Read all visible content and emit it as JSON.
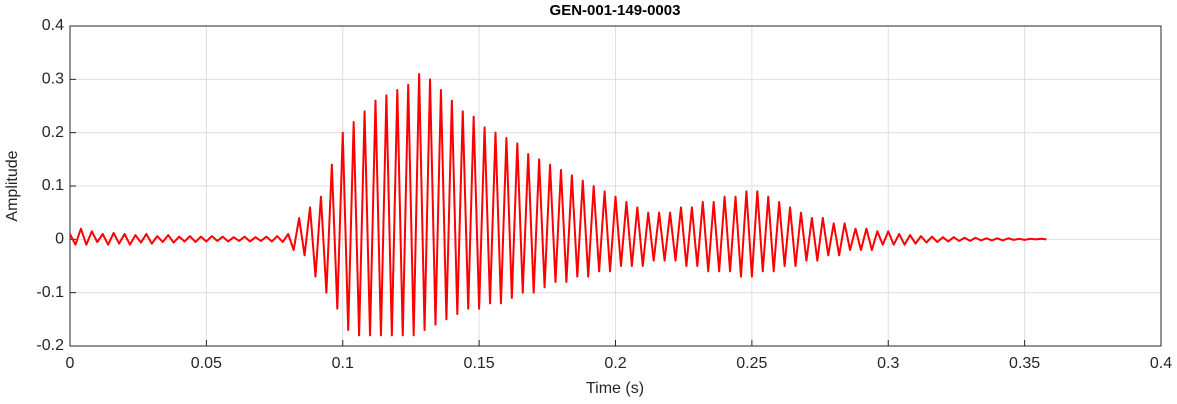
{
  "chart_data": {
    "type": "line",
    "title": "GEN-001-149-0003",
    "x_label": "Time (s)",
    "y_label": "Amplitude",
    "xlim": [
      0,
      0.4
    ],
    "ylim": [
      -0.2,
      0.4
    ],
    "xticks": [
      0,
      0.05,
      0.1,
      0.15,
      0.2,
      0.25,
      0.3,
      0.35,
      0.4
    ],
    "yticks": [
      -0.2,
      -0.1,
      0,
      0.1,
      0.2,
      0.3,
      0.4
    ],
    "grid": true,
    "x": [
      0,
      0.002,
      0.004,
      0.006,
      0.008,
      0.01,
      0.012,
      0.014,
      0.016,
      0.018,
      0.02,
      0.022,
      0.024,
      0.026,
      0.028,
      0.03,
      0.032,
      0.034,
      0.036,
      0.038,
      0.04,
      0.042,
      0.044,
      0.046,
      0.048,
      0.05,
      0.052,
      0.054,
      0.056,
      0.058,
      0.06,
      0.062,
      0.064,
      0.066,
      0.068,
      0.07,
      0.072,
      0.074,
      0.076,
      0.078,
      0.08,
      0.082,
      0.084,
      0.086,
      0.088,
      0.09,
      0.092,
      0.094,
      0.096,
      0.098,
      0.1,
      0.102,
      0.104,
      0.106,
      0.108,
      0.11,
      0.112,
      0.114,
      0.116,
      0.118,
      0.12,
      0.122,
      0.124,
      0.126,
      0.128,
      0.13,
      0.132,
      0.134,
      0.136,
      0.138,
      0.14,
      0.142,
      0.144,
      0.146,
      0.148,
      0.15,
      0.152,
      0.154,
      0.156,
      0.158,
      0.16,
      0.162,
      0.164,
      0.166,
      0.168,
      0.17,
      0.172,
      0.174,
      0.176,
      0.178,
      0.18,
      0.182,
      0.184,
      0.186,
      0.188,
      0.19,
      0.192,
      0.194,
      0.196,
      0.198,
      0.2,
      0.202,
      0.204,
      0.206,
      0.208,
      0.21,
      0.212,
      0.214,
      0.216,
      0.218,
      0.22,
      0.222,
      0.224,
      0.226,
      0.228,
      0.23,
      0.232,
      0.234,
      0.236,
      0.238,
      0.24,
      0.242,
      0.244,
      0.246,
      0.248,
      0.25,
      0.252,
      0.254,
      0.256,
      0.258,
      0.26,
      0.262,
      0.264,
      0.266,
      0.268,
      0.27,
      0.272,
      0.274,
      0.276,
      0.278,
      0.28,
      0.282,
      0.284,
      0.286,
      0.288,
      0.29,
      0.292,
      0.294,
      0.296,
      0.298,
      0.3,
      0.302,
      0.304,
      0.306,
      0.308,
      0.31,
      0.312,
      0.314,
      0.316,
      0.318,
      0.32,
      0.322,
      0.324,
      0.326,
      0.328,
      0.33,
      0.332,
      0.334,
      0.336,
      0.338,
      0.34,
      0.342,
      0.344,
      0.346,
      0.348,
      0.35,
      0.352,
      0.354,
      0.356,
      0.358
    ],
    "series": [
      {
        "name": "Amplitude",
        "color": "#ff0000",
        "values": [
          0.01,
          -0.01,
          0.02,
          -0.01,
          0.015,
          -0.005,
          0.01,
          -0.01,
          0.012,
          -0.008,
          0.01,
          -0.01,
          0.008,
          -0.006,
          0.01,
          -0.008,
          0.006,
          -0.005,
          0.008,
          -0.006,
          0.005,
          -0.004,
          0.006,
          -0.005,
          0.005,
          -0.004,
          0.006,
          -0.003,
          0.005,
          -0.004,
          0.004,
          -0.003,
          0.005,
          -0.004,
          0.004,
          -0.003,
          0.005,
          -0.004,
          0.006,
          -0.005,
          0.01,
          -0.02,
          0.04,
          -0.03,
          0.06,
          -0.07,
          0.08,
          -0.1,
          0.14,
          -0.13,
          0.2,
          -0.17,
          0.22,
          -0.18,
          0.24,
          -0.18,
          0.26,
          -0.18,
          0.27,
          -0.18,
          0.28,
          -0.18,
          0.29,
          -0.18,
          0.31,
          -0.17,
          0.3,
          -0.16,
          0.28,
          -0.15,
          0.26,
          -0.14,
          0.24,
          -0.13,
          0.23,
          -0.13,
          0.21,
          -0.12,
          0.2,
          -0.12,
          0.19,
          -0.11,
          0.18,
          -0.1,
          0.16,
          -0.1,
          0.15,
          -0.09,
          0.14,
          -0.08,
          0.13,
          -0.08,
          0.12,
          -0.07,
          0.11,
          -0.07,
          0.1,
          -0.06,
          0.09,
          -0.06,
          0.08,
          -0.05,
          0.07,
          -0.05,
          0.06,
          -0.05,
          0.05,
          -0.04,
          0.05,
          -0.04,
          0.05,
          -0.04,
          0.06,
          -0.05,
          0.06,
          -0.05,
          0.07,
          -0.06,
          0.07,
          -0.06,
          0.08,
          -0.06,
          0.08,
          -0.07,
          0.09,
          -0.07,
          0.09,
          -0.06,
          0.08,
          -0.06,
          0.07,
          -0.05,
          0.06,
          -0.05,
          0.05,
          -0.04,
          0.04,
          -0.04,
          0.04,
          -0.03,
          0.03,
          -0.03,
          0.03,
          -0.02,
          0.02,
          -0.02,
          0.02,
          -0.02,
          0.015,
          -0.01,
          0.015,
          -0.01,
          0.01,
          -0.01,
          0.008,
          -0.008,
          0.006,
          -0.006,
          0.005,
          -0.005,
          0.004,
          -0.004,
          0.004,
          -0.003,
          0.003,
          -0.003,
          0.003,
          -0.002,
          0.002,
          -0.002,
          0.002,
          -0.002,
          0.002,
          -0.001,
          0.001,
          -0.001,
          0.001,
          0,
          0.001,
          0
        ]
      }
    ]
  }
}
